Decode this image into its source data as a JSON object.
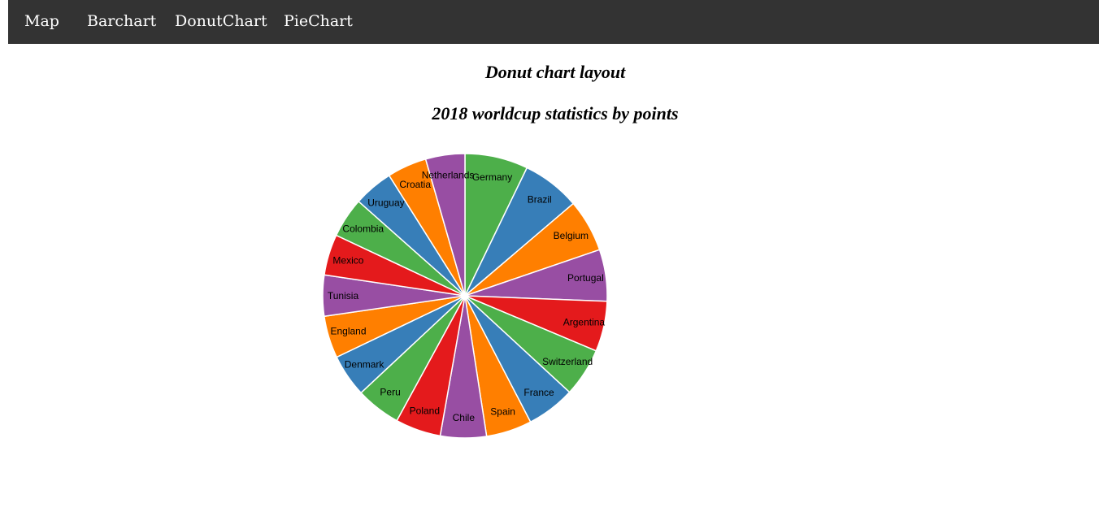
{
  "nav": {
    "items": [
      {
        "label": "Map"
      },
      {
        "label": "Barchart"
      },
      {
        "label": "DonutChart"
      },
      {
        "label": "PieChart"
      }
    ]
  },
  "page": {
    "title": "Donut chart layout"
  },
  "colors": [
    "#4daf4a",
    "#377eb8",
    "#ff7f00",
    "#984ea3",
    "#e41a1c"
  ],
  "chart_data": {
    "type": "pie",
    "title": "2018 worldcup statistics by points",
    "categories": [
      "Germany",
      "Brazil",
      "Belgium",
      "Portugal",
      "Argentina",
      "Switzerland",
      "France",
      "Spain",
      "Chile",
      "Poland",
      "Peru",
      "Denmark",
      "England",
      "Tunisia",
      "Mexico",
      "Colombia",
      "Uruguay",
      "Croatia",
      "Netherlands"
    ],
    "values": [
      1558,
      1431,
      1298,
      1274,
      1241,
      1199,
      1198,
      1126,
      1135,
      1120,
      1106,
      1054,
      1040,
      1012,
      1008,
      989,
      976,
      975,
      968
    ]
  }
}
